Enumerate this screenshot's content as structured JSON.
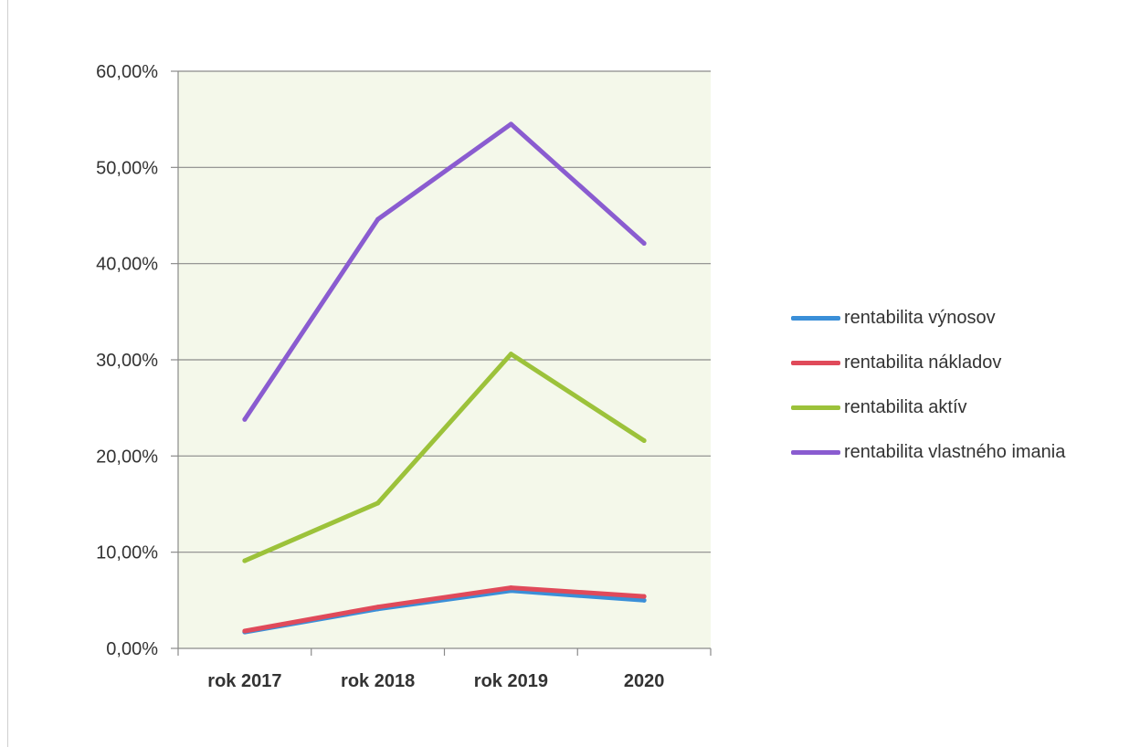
{
  "chart_data": {
    "type": "line",
    "categories": [
      "rok 2017",
      "rok 2018",
      "rok 2019",
      "2020"
    ],
    "ylim": [
      0,
      60
    ],
    "yticks": [
      0,
      10,
      20,
      30,
      40,
      50,
      60
    ],
    "ytick_labels": [
      "0,00%",
      "10,00%",
      "20,00%",
      "30,00%",
      "40,00%",
      "50,00%",
      "60,00%"
    ],
    "grid": true,
    "legend_position": "right",
    "plot_background": "#f4f8ea",
    "series": [
      {
        "name": "rentabilita výnosov",
        "color": "#3a8fd8",
        "values": [
          1.7,
          4.1,
          6.0,
          5.0
        ]
      },
      {
        "name": "rentabilita nákladov",
        "color": "#e04a5a",
        "values": [
          1.8,
          4.3,
          6.3,
          5.4
        ]
      },
      {
        "name": "rentabilita aktív",
        "color": "#9cc23a",
        "values": [
          9.1,
          15.1,
          30.6,
          21.6
        ]
      },
      {
        "name": "rentabilita vlastného imania",
        "color": "#8a5cd0",
        "values": [
          23.8,
          44.6,
          54.5,
          42.1
        ]
      }
    ]
  }
}
